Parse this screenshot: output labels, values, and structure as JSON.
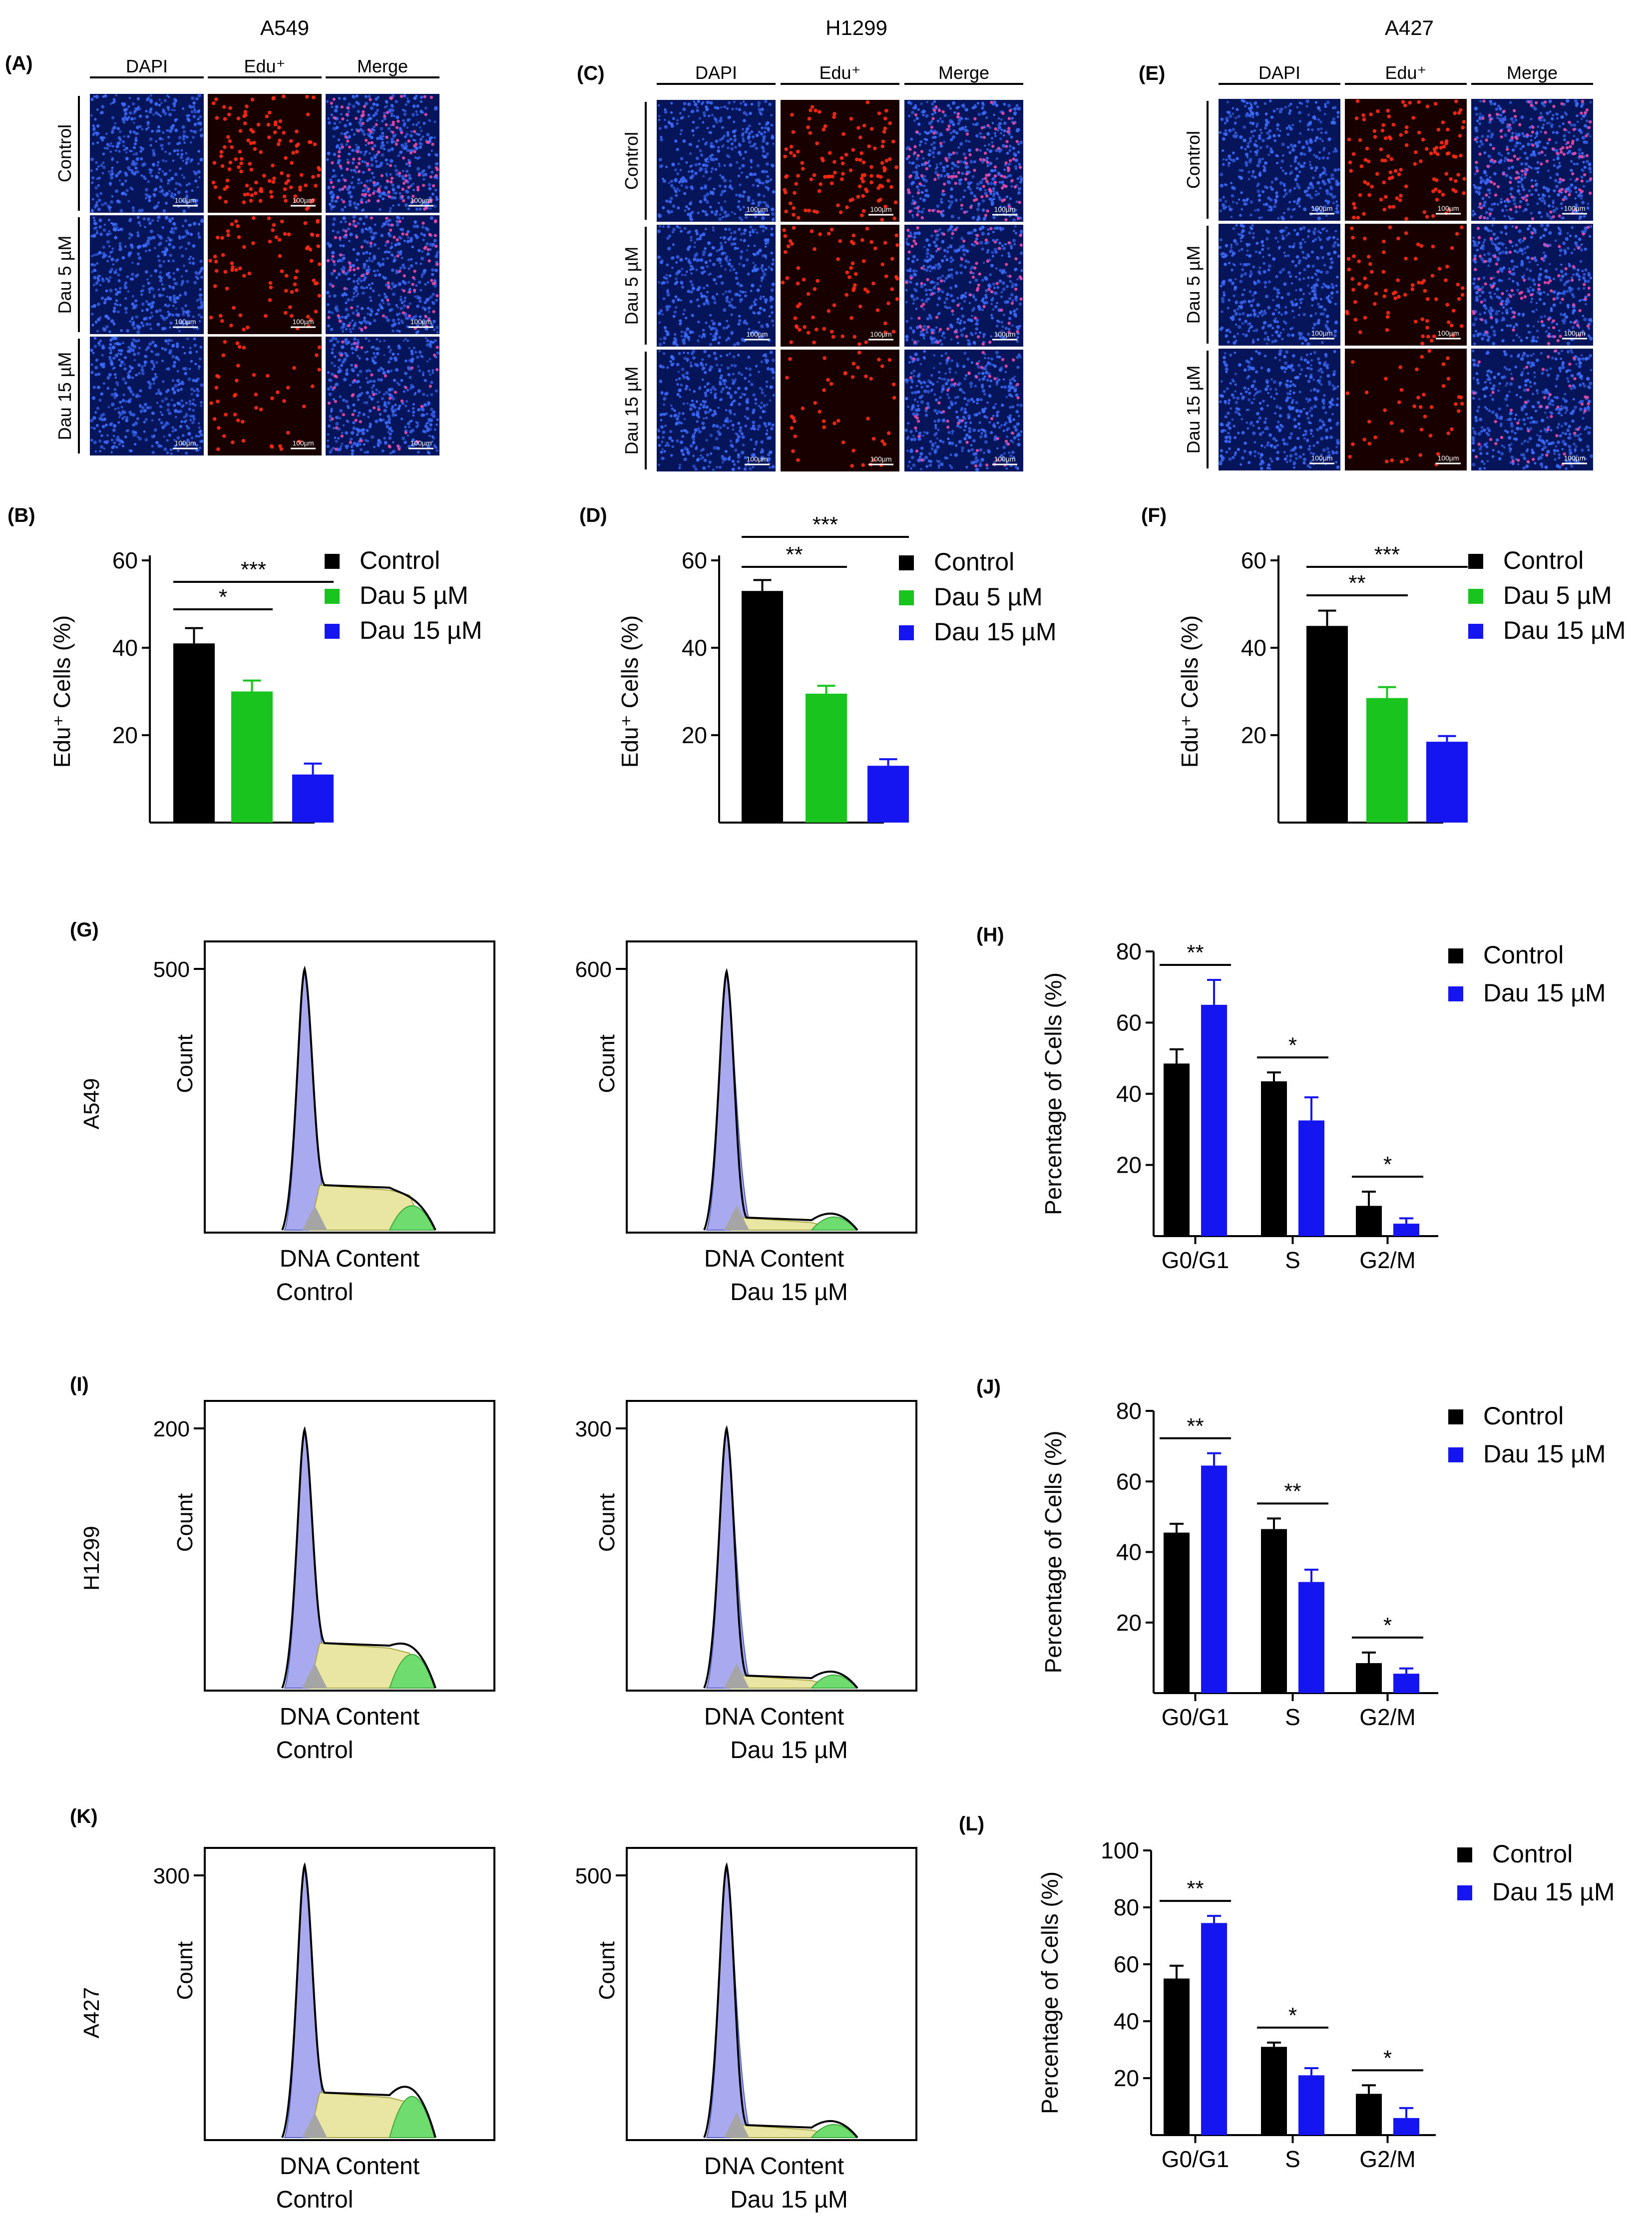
{
  "colors": {
    "control": "#000000",
    "dau5": "#19c41e",
    "dau15": "#1515f2",
    "dapi_bg": "#06145a",
    "dapi_dot": "#3d6dff",
    "edu_bg": "#190000",
    "edu_dot": "#ff2a14",
    "g1_fill": "#a9a9ef",
    "s_fill": "#e9e6a3",
    "g2_fill": "#6fdc6f",
    "gray_fill": "#a5a5a5"
  },
  "micro_panels": [
    {
      "letter": "(A)",
      "cell_line": "A549",
      "columns": [
        "DAPI",
        "Edu⁺",
        "Merge"
      ],
      "rows": [
        "Control",
        "Dau 5 µM",
        "Dau 15 µM"
      ],
      "scale_bar": "100µm"
    },
    {
      "letter": "(C)",
      "cell_line": "H1299",
      "columns": [
        "DAPI",
        "Edu⁺",
        "Merge"
      ],
      "rows": [
        "Control",
        "Dau 5 µM",
        "Dau 15 µM"
      ],
      "scale_bar": "100µm"
    },
    {
      "letter": "(E)",
      "cell_line": "A427",
      "columns": [
        "DAPI",
        "Edu⁺",
        "Merge"
      ],
      "rows": [
        "Control",
        "Dau 5 µM",
        "Dau 15 µM"
      ],
      "scale_bar": "100µm"
    }
  ],
  "chart_data": [
    {
      "id": "B",
      "letter": "(B)",
      "type": "bar",
      "ylabel": "Edu⁺ Cells (%)",
      "yticks": [
        "20",
        "40",
        "60"
      ],
      "ylim": [
        0,
        60
      ],
      "legend": [
        "Control",
        "Dau 5 µM",
        "Dau 15 µM"
      ],
      "values": [
        41,
        30,
        11
      ],
      "errors": [
        3.5,
        2.5,
        2.5
      ],
      "sig": [
        {
          "label": "*"
        },
        {
          "label": "***"
        }
      ]
    },
    {
      "id": "D",
      "letter": "(D)",
      "type": "bar",
      "ylabel": "Edu⁺ Cells (%)",
      "yticks": [
        "20",
        "40",
        "60"
      ],
      "ylim": [
        0,
        60
      ],
      "legend": [
        "Control",
        "Dau 5 µM",
        "Dau 15 µM"
      ],
      "values": [
        53,
        29.5,
        13
      ],
      "errors": [
        2.5,
        1.8,
        1.5
      ],
      "sig": [
        {
          "label": "**"
        },
        {
          "label": "***"
        }
      ]
    },
    {
      "id": "F",
      "letter": "(F)",
      "type": "bar",
      "ylabel": "Edu⁺ Cells (%)",
      "yticks": [
        "20",
        "40",
        "60"
      ],
      "ylim": [
        0,
        60
      ],
      "legend": [
        "Control",
        "Dau 5 µM",
        "Dau 15 µM"
      ],
      "values": [
        45,
        28.5,
        18.5
      ],
      "errors": [
        3.5,
        2.5,
        1.3
      ],
      "sig": [
        {
          "label": "**"
        },
        {
          "label": "***"
        }
      ]
    },
    {
      "id": "H",
      "letter": "(H)",
      "type": "bar",
      "ylabel": "Percentage of Cells (%)",
      "categories": [
        "G0/G1",
        "S",
        "G2/M"
      ],
      "yticks": [
        "20",
        "40",
        "60",
        "80"
      ],
      "ylim": [
        0,
        80
      ],
      "legend": [
        "Control",
        "Dau 15 µM"
      ],
      "series": [
        {
          "name": "Control",
          "values": [
            48.5,
            43.5,
            8.5
          ],
          "errors": [
            4,
            2.5,
            4
          ]
        },
        {
          "name": "Dau 15 µM",
          "values": [
            65,
            32.5,
            3.5
          ],
          "errors": [
            7,
            6.5,
            1.5
          ]
        }
      ],
      "sig": [
        "**",
        "*",
        "*"
      ]
    },
    {
      "id": "J",
      "letter": "(J)",
      "type": "bar",
      "ylabel": "Percentage of Cells (%)",
      "categories": [
        "G0/G1",
        "S",
        "G2/M"
      ],
      "yticks": [
        "20",
        "40",
        "60",
        "80"
      ],
      "ylim": [
        0,
        80
      ],
      "legend": [
        "Control",
        "Dau 15 µM"
      ],
      "series": [
        {
          "name": "Control",
          "values": [
            45.5,
            46.5,
            8.5
          ],
          "errors": [
            2.5,
            3,
            3
          ]
        },
        {
          "name": "Dau 15 µM",
          "values": [
            64.5,
            31.5,
            5.5
          ],
          "errors": [
            3.5,
            3.5,
            1.5
          ]
        }
      ],
      "sig": [
        "**",
        "**",
        "*"
      ]
    },
    {
      "id": "L",
      "letter": "(L)",
      "type": "bar",
      "ylabel": "Percentage of Cells (%)",
      "categories": [
        "G0/G1",
        "S",
        "G2/M"
      ],
      "yticks": [
        "20",
        "40",
        "60",
        "80",
        "100"
      ],
      "ylim": [
        0,
        100
      ],
      "legend": [
        "Control",
        "Dau 15 µM"
      ],
      "series": [
        {
          "name": "Control",
          "values": [
            55,
            31,
            14.5
          ],
          "errors": [
            4.5,
            1.5,
            3
          ]
        },
        {
          "name": "Dau 15 µM",
          "values": [
            74.5,
            21,
            6
          ],
          "errors": [
            2.5,
            2.5,
            3.5
          ]
        }
      ],
      "sig": [
        "**",
        "*",
        "*"
      ]
    }
  ],
  "histograms": [
    {
      "letter": "(G)",
      "cell_line": "A549",
      "panels": [
        {
          "ytick": "500",
          "ylabel": "Count",
          "xlabel": "DNA Content",
          "condition": "Control"
        },
        {
          "ytick": "600",
          "ylabel": "Count",
          "xlabel": "DNA Content",
          "condition": "Dau 15 µM"
        }
      ]
    },
    {
      "letter": "(I)",
      "cell_line": "H1299",
      "panels": [
        {
          "ytick": "200",
          "ylabel": "Count",
          "xlabel": "DNA Content",
          "condition": "Control"
        },
        {
          "ytick": "300",
          "ylabel": "Count",
          "xlabel": "DNA Content",
          "condition": "Dau 15 µM"
        }
      ]
    },
    {
      "letter": "(K)",
      "cell_line": "A427",
      "panels": [
        {
          "ytick": "300",
          "ylabel": "Count",
          "xlabel": "DNA Content",
          "condition": "Control"
        },
        {
          "ytick": "500",
          "ylabel": "Count",
          "xlabel": "DNA Content",
          "condition": "Dau 15 µM"
        }
      ]
    }
  ]
}
